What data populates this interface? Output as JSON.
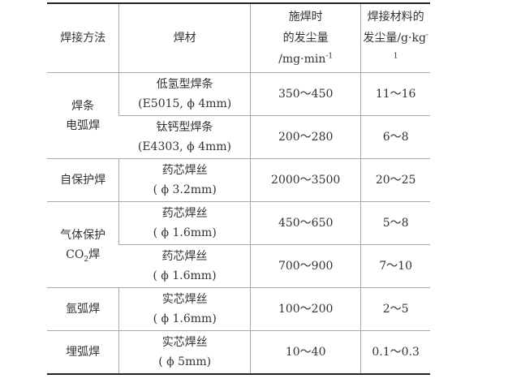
{
  "headers": {
    "method": "焊接方法",
    "material": "焊材",
    "rate_l1": "施焊时",
    "rate_l2": "的发尘量",
    "rate_unit": "/mg·min",
    "rate_exp": "-1",
    "amount_l1": "焊接材料的",
    "amount_l2": "发尘量/g·kg",
    "amount_exp": "-1"
  },
  "groups": {
    "smaw_l1": "焊条",
    "smaw_l2": "电弧焊",
    "self": "自保护焊",
    "gas_l1": "气体保护",
    "gas_co": "CO",
    "gas_sub": "2",
    "gas_end": "焊",
    "argon": "氩弧焊",
    "saw": "埋弧焊"
  },
  "rows": [
    {
      "mat1": "低氢型焊条",
      "mat2": "(E5015, ϕ 4mm)",
      "rate": "350～450",
      "amount": "11～16"
    },
    {
      "mat1": "钛钙型焊条",
      "mat2": "(E4303, ϕ 4mm)",
      "rate": "200～280",
      "amount": "6～8"
    },
    {
      "mat1": "药芯焊丝",
      "mat2": "( ϕ 3.2mm)",
      "rate": "2000～3500",
      "amount": "20～25"
    },
    {
      "mat1": "药芯焊丝",
      "mat2": "( ϕ 1.6mm)",
      "rate": "450～650",
      "amount": "5～8"
    },
    {
      "mat1": "药芯焊丝",
      "mat2": "( ϕ 1.6mm)",
      "rate": "700～900",
      "amount": "7～10"
    },
    {
      "mat1": "实芯焊丝",
      "mat2": "( ϕ 1.6mm)",
      "rate": "100～200",
      "amount": "2～5"
    },
    {
      "mat1": "实芯焊丝",
      "mat2": "( ϕ 5mm)",
      "rate": "10～40",
      "amount": "0.1～0.3"
    }
  ]
}
